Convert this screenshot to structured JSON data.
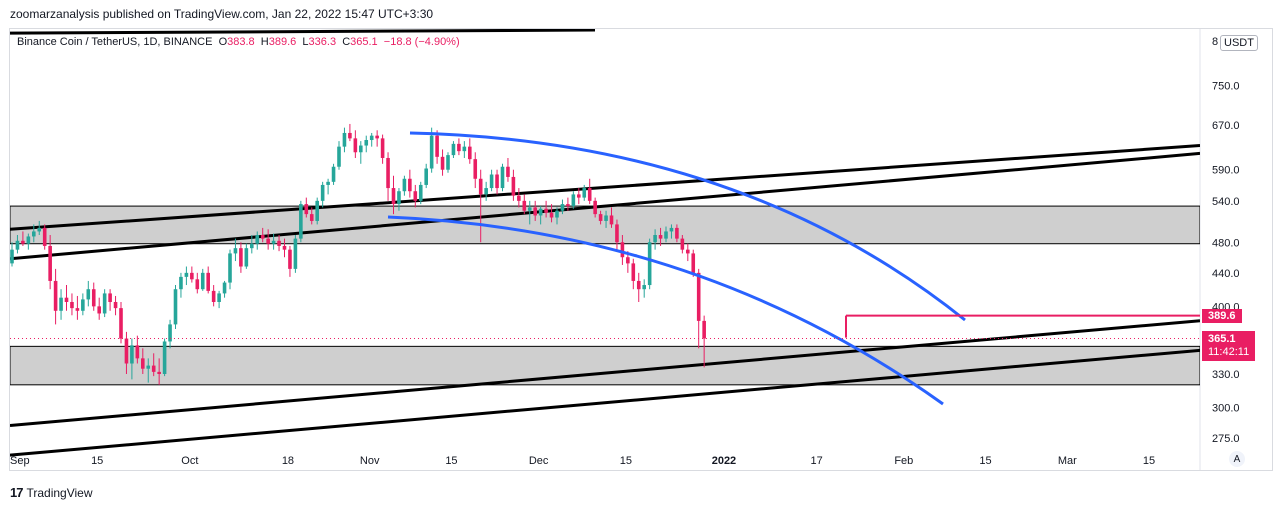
{
  "header": {
    "published": "zoomarzanalysis published on TradingView.com, Jan 22, 2022 15:47 UTC+3:30"
  },
  "legend": {
    "symbol": "Binance Coin / TetherUS, 1D, BINANCE",
    "open_label": "O",
    "open": "383.8",
    "high_label": "H",
    "high": "389.6",
    "low_label": "L",
    "low": "336.3",
    "close_label": "C",
    "close": "365.1",
    "change": "−18.8 (−4.90%)"
  },
  "currency_button": "USDT",
  "scale_top_label": "8",
  "price_tags": {
    "high_line": "389.6",
    "last_price": "365.1",
    "countdown": "11:42:11"
  },
  "auto_button": "A",
  "footer": {
    "brand": "TradingView",
    "logo": "17"
  },
  "colors": {
    "up": "#26a69a",
    "down": "#e91e63",
    "trend": "#000000",
    "curve": "#2962ff",
    "zone": "#cfcfcf"
  },
  "chart_data": {
    "type": "candlestick",
    "symbol": "Binance Coin / TetherUS",
    "interval": "1D",
    "y_ticks": [
      750.0,
      670.0,
      590.0,
      540.0,
      480.0,
      440.0,
      400.0,
      330.0,
      300.0,
      275.0
    ],
    "y_tick_labels": [
      "750.0",
      "670.0",
      "590.0",
      "540.0",
      "480.0",
      "440.0",
      "400.0",
      "330.0",
      "300.0",
      "275.0"
    ],
    "x_tick_labels": [
      "Sep",
      "15",
      "Oct",
      "18",
      "Nov",
      "15",
      "Dec",
      "15",
      "2022",
      "17",
      "Feb",
      "15",
      "Mar",
      "15"
    ],
    "scale": "log",
    "zones": [
      {
        "label": "upper-zone",
        "low": 478,
        "high": 532
      },
      {
        "label": "lower-zone",
        "low": 320,
        "high": 357
      }
    ],
    "horizontal_line": 389.6,
    "last_price": 365.1,
    "candles": [
      [
        452,
        480,
        448,
        470
      ],
      [
        470,
        490,
        465,
        482
      ],
      [
        482,
        495,
        475,
        478
      ],
      [
        478,
        492,
        470,
        488
      ],
      [
        488,
        505,
        480,
        495
      ],
      [
        495,
        510,
        490,
        500
      ],
      [
        500,
        505,
        470,
        475
      ],
      [
        475,
        490,
        420,
        430
      ],
      [
        430,
        445,
        380,
        395
      ],
      [
        395,
        420,
        385,
        410
      ],
      [
        410,
        425,
        395,
        405
      ],
      [
        405,
        415,
        390,
        398
      ],
      [
        398,
        412,
        385,
        395
      ],
      [
        395,
        415,
        390,
        408
      ],
      [
        408,
        430,
        400,
        420
      ],
      [
        420,
        428,
        395,
        400
      ],
      [
        400,
        410,
        385,
        392
      ],
      [
        392,
        420,
        388,
        415
      ],
      [
        415,
        420,
        395,
        405
      ],
      [
        405,
        412,
        390,
        398
      ],
      [
        398,
        405,
        360,
        365
      ],
      [
        365,
        372,
        330,
        340
      ],
      [
        340,
        365,
        325,
        358
      ],
      [
        358,
        368,
        340,
        345
      ],
      [
        345,
        355,
        330,
        335
      ],
      [
        335,
        345,
        322,
        338
      ],
      [
        338,
        350,
        328,
        332
      ],
      [
        332,
        345,
        320,
        330
      ],
      [
        330,
        365,
        328,
        362
      ],
      [
        362,
        385,
        355,
        380
      ],
      [
        380,
        425,
        375,
        420
      ],
      [
        420,
        440,
        410,
        435
      ],
      [
        435,
        448,
        425,
        440
      ],
      [
        440,
        448,
        428,
        432
      ],
      [
        432,
        440,
        415,
        420
      ],
      [
        420,
        445,
        418,
        440
      ],
      [
        440,
        448,
        415,
        418
      ],
      [
        418,
        425,
        400,
        405
      ],
      [
        405,
        418,
        398,
        415
      ],
      [
        415,
        430,
        410,
        428
      ],
      [
        428,
        470,
        420,
        465
      ],
      [
        465,
        485,
        455,
        472
      ],
      [
        472,
        480,
        440,
        448
      ],
      [
        448,
        478,
        445,
        472
      ],
      [
        472,
        490,
        465,
        478
      ],
      [
        478,
        495,
        470,
        490
      ],
      [
        490,
        500,
        480,
        485
      ],
      [
        485,
        498,
        470,
        478
      ],
      [
        478,
        492,
        470,
        482
      ],
      [
        482,
        490,
        468,
        475
      ],
      [
        475,
        485,
        460,
        470
      ],
      [
        470,
        475,
        435,
        445
      ],
      [
        445,
        490,
        440,
        485
      ],
      [
        485,
        540,
        480,
        535
      ],
      [
        535,
        545,
        515,
        520
      ],
      [
        520,
        530,
        505,
        510
      ],
      [
        510,
        545,
        505,
        540
      ],
      [
        540,
        570,
        530,
        565
      ],
      [
        565,
        575,
        550,
        570
      ],
      [
        570,
        600,
        565,
        595
      ],
      [
        595,
        640,
        590,
        630
      ],
      [
        630,
        665,
        620,
        655
      ],
      [
        655,
        672,
        640,
        645
      ],
      [
        645,
        660,
        610,
        620
      ],
      [
        620,
        640,
        600,
        632
      ],
      [
        632,
        650,
        620,
        642
      ],
      [
        642,
        655,
        630,
        650
      ],
      [
        650,
        660,
        630,
        645
      ],
      [
        645,
        652,
        600,
        610
      ],
      [
        610,
        620,
        540,
        560
      ],
      [
        560,
        580,
        520,
        535
      ],
      [
        535,
        560,
        525,
        555
      ],
      [
        555,
        580,
        548,
        575
      ],
      [
        575,
        590,
        545,
        555
      ],
      [
        555,
        565,
        530,
        540
      ],
      [
        540,
        570,
        535,
        565
      ],
      [
        565,
        600,
        560,
        592
      ],
      [
        592,
        665,
        585,
        650
      ],
      [
        650,
        660,
        600,
        612
      ],
      [
        612,
        625,
        580,
        590
      ],
      [
        590,
        620,
        585,
        615
      ],
      [
        615,
        640,
        610,
        635
      ],
      [
        635,
        645,
        615,
        622
      ],
      [
        622,
        640,
        610,
        630
      ],
      [
        630,
        645,
        600,
        608
      ],
      [
        608,
        620,
        560,
        575
      ],
      [
        575,
        590,
        480,
        550
      ],
      [
        550,
        570,
        540,
        560
      ],
      [
        560,
        590,
        555,
        582
      ],
      [
        582,
        590,
        550,
        560
      ],
      [
        560,
        600,
        555,
        595
      ],
      [
        595,
        610,
        570,
        578
      ],
      [
        578,
        590,
        540,
        548
      ],
      [
        548,
        560,
        530,
        540
      ],
      [
        540,
        550,
        520,
        525
      ],
      [
        525,
        540,
        505,
        530
      ],
      [
        530,
        540,
        510,
        518
      ],
      [
        518,
        532,
        505,
        528
      ],
      [
        528,
        540,
        515,
        522
      ],
      [
        522,
        535,
        508,
        515
      ],
      [
        515,
        530,
        505,
        525
      ],
      [
        525,
        542,
        520,
        535
      ],
      [
        535,
        545,
        525,
        532
      ],
      [
        532,
        555,
        528,
        550
      ],
      [
        550,
        560,
        535,
        545
      ],
      [
        545,
        565,
        540,
        560
      ],
      [
        560,
        575,
        535,
        540
      ],
      [
        540,
        545,
        515,
        520
      ],
      [
        520,
        525,
        505,
        510
      ],
      [
        510,
        525,
        500,
        518
      ],
      [
        518,
        530,
        500,
        505
      ],
      [
        505,
        512,
        470,
        480
      ],
      [
        480,
        490,
        450,
        460
      ],
      [
        460,
        468,
        440,
        452
      ],
      [
        452,
        458,
        420,
        430
      ],
      [
        430,
        440,
        405,
        420
      ],
      [
        420,
        432,
        410,
        425
      ],
      [
        425,
        485,
        420,
        480
      ],
      [
        480,
        498,
        470,
        490
      ],
      [
        490,
        500,
        475,
        485
      ],
      [
        485,
        502,
        480,
        495
      ],
      [
        495,
        505,
        485,
        500
      ],
      [
        500,
        505,
        480,
        485
      ],
      [
        485,
        490,
        465,
        470
      ],
      [
        470,
        478,
        455,
        465
      ],
      [
        465,
        470,
        435,
        440
      ],
      [
        440,
        445,
        355,
        383.8
      ],
      [
        383.8,
        389.6,
        336.3,
        365.1
      ]
    ],
    "trend_lines": [
      {
        "from": [
          "Sep",
          475
        ],
        "to": [
          "Mar 15",
          620
        ],
        "label": "upper-channel-a"
      },
      {
        "from": [
          "Sep",
          465
        ],
        "to": [
          "Mar 15",
          605
        ],
        "label": "upper-channel-b"
      },
      {
        "from": [
          "Sep",
          285
        ],
        "to": [
          "Mar 15",
          385
        ],
        "label": "lower-channel-a"
      },
      {
        "from": [
          "Oct",
          270
        ],
        "to": [
          "Mar 15",
          355
        ],
        "label": "lower-channel-b"
      }
    ],
    "arcs": [
      {
        "label": "upper-arc",
        "from": [
          "Nov 5",
          648
        ],
        "peak": [
          "Nov 10",
          650
        ],
        "to": [
          "Feb 10",
          390
        ]
      },
      {
        "label": "lower-arc",
        "from": [
          "Nov 15",
          528
        ],
        "to": [
          "Feb 10",
          305
        ]
      }
    ]
  }
}
